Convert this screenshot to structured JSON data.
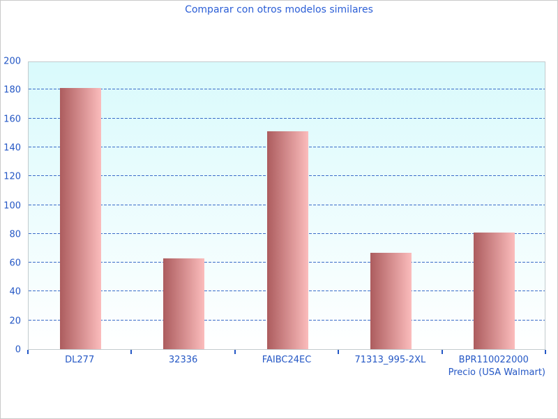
{
  "window": {
    "background": "#ffffff",
    "border_color": "#c9c9c9"
  },
  "chart_data": {
    "type": "bar",
    "title": "Comparar con otros modelos similares",
    "categories": [
      "DL277",
      "32336",
      "FAIBC24EC",
      "71313_995-2XL",
      "BPR110022000"
    ],
    "values": [
      181,
      63,
      151,
      67,
      81
    ],
    "xlabel": "Precio (USA Walmart)",
    "ylabel": "",
    "ylim": [
      0,
      200
    ],
    "ytick_step": 20,
    "grid": "horizontal-dashed",
    "legend": "none",
    "colors": {
      "title_text": "#2b5ed6",
      "axis_text": "#2457c5",
      "gridline": "#3a6bc8",
      "tick_mark": "#2457c5",
      "bar_gradient_left": "#ac5c5e",
      "bar_gradient_right": "#fbbcbc",
      "plot_bg_top": "#d9fafc",
      "plot_bg_bottom": "#ffffff",
      "plot_border": "#c2cbce"
    }
  }
}
